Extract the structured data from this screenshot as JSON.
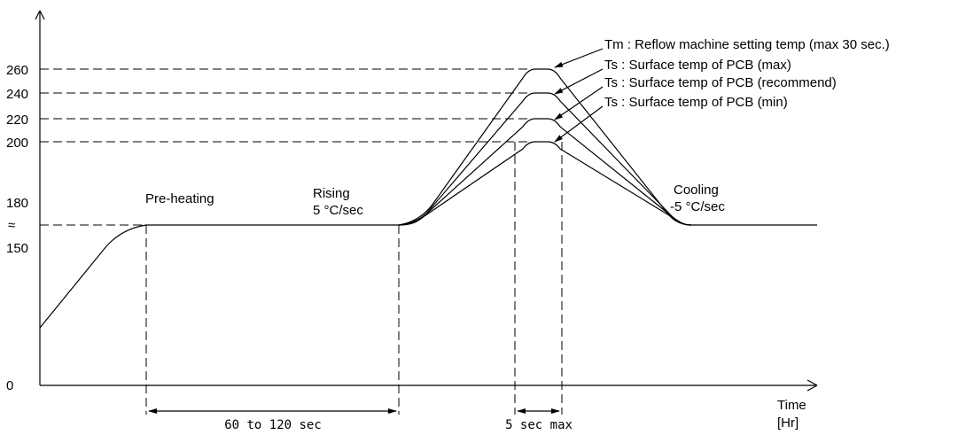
{
  "chart_data": {
    "type": "line",
    "title": "",
    "xlabel": "Time",
    "xlabel_unit": "[Hr]",
    "ylabel": "",
    "y_ticks": [
      {
        "value": 0,
        "label": "0"
      },
      {
        "value": 150,
        "label": "150"
      },
      {
        "value": 165,
        "label": "≈"
      },
      {
        "value": 180,
        "label": "180"
      },
      {
        "value": 200,
        "label": "200"
      },
      {
        "value": 220,
        "label": "220"
      },
      {
        "value": 240,
        "label": "240"
      },
      {
        "value": 260,
        "label": "260"
      }
    ],
    "series": [
      {
        "name": "Tm : Reflow machine setting temp (max 30 sec.)",
        "peak": 260
      },
      {
        "name": "Ts : Surface temp of PCB (max)",
        "peak": 240
      },
      {
        "name": "Ts : Surface temp of PCB (recommend)",
        "peak": 220
      },
      {
        "name": "Ts : Surface temp of PCB (min)",
        "peak": 200
      }
    ],
    "annotations": {
      "preheat": "Pre-heating",
      "rising_title": "Rising",
      "rising_rate": "5 °C/sec",
      "cooling_title": "Cooling",
      "cooling_rate": "-5 °C/sec",
      "preheat_duration": "60 to 120 sec",
      "peak_duration": "5 sec max"
    }
  }
}
